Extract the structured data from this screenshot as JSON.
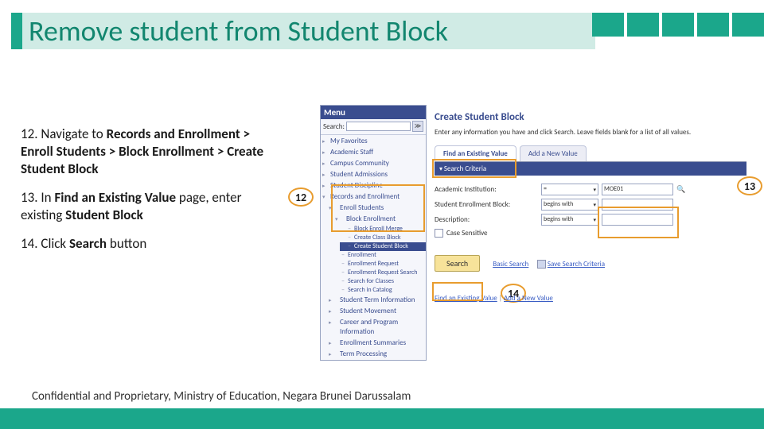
{
  "title": "Remove student from Student Block",
  "steps": {
    "s12_num": "12.",
    "s12_pre": " Navigate to ",
    "s12_bold": "Records and Enrollment > Enroll Students > Block Enrollment > Create Student Block",
    "s13_num": "13.",
    "s13_pre": " In ",
    "s13_bold1": "Find an Existing Value",
    "s13_mid": " page, enter existing ",
    "s13_bold2": "Student Block",
    "s14_num": "14.",
    "s14_pre": " Click ",
    "s14_bold": "Search",
    "s14_post": " button"
  },
  "callouts": {
    "c12": "12",
    "c13": "13",
    "c14": "14"
  },
  "menu": {
    "header": "Menu",
    "search_label": "Search:",
    "items": {
      "fav": "My Favorites",
      "acad": "Academic Staff",
      "campus": "Campus Community",
      "adm": "Student Admissions",
      "disc": "Student Discipline",
      "rec": "Records and Enrollment",
      "enroll": "Enroll Students",
      "block": "Block Enrollment",
      "merge": "Block Enroll Merge",
      "create_class": "Create Class Block",
      "create_student": "Create Student Block",
      "enr_select": "Enrollment",
      "enr_req": "Enrollment Request",
      "enr_req_s": "Enrollment Request Search",
      "search_classes": "Search for Classes",
      "search_catalog": "Search in Catalog",
      "term_info": "Student Term Information",
      "movement": "Student Movement",
      "career": "Career and Program Information",
      "summaries": "Enrollment Summaries",
      "term_proc": "Term Processing"
    }
  },
  "page": {
    "heading": "Create Student Block",
    "intro": "Enter any information you have and click Search. Leave fields blank for a list of all values.",
    "tab1": "Find an Existing Value",
    "tab2": "Add a New Value",
    "criteria_hdr": "Search Criteria",
    "f_inst": "Academic Institution:",
    "f_block": "Student Enrollment Block:",
    "f_desc": "Description:",
    "op_eq": "= ",
    "op_begins": "begins with",
    "val_inst": "MOE01",
    "case": "Case Sensitive",
    "btn_search": "Search",
    "basic": "Basic Search",
    "save": "Save Search Criteria",
    "bottom1": "Find an Existing Value",
    "bottom_sep": " | ",
    "bottom2": "Add a New Value"
  },
  "footer": "Confidential and Proprietary, Ministry of Education, Negara Brunei Darussalam"
}
